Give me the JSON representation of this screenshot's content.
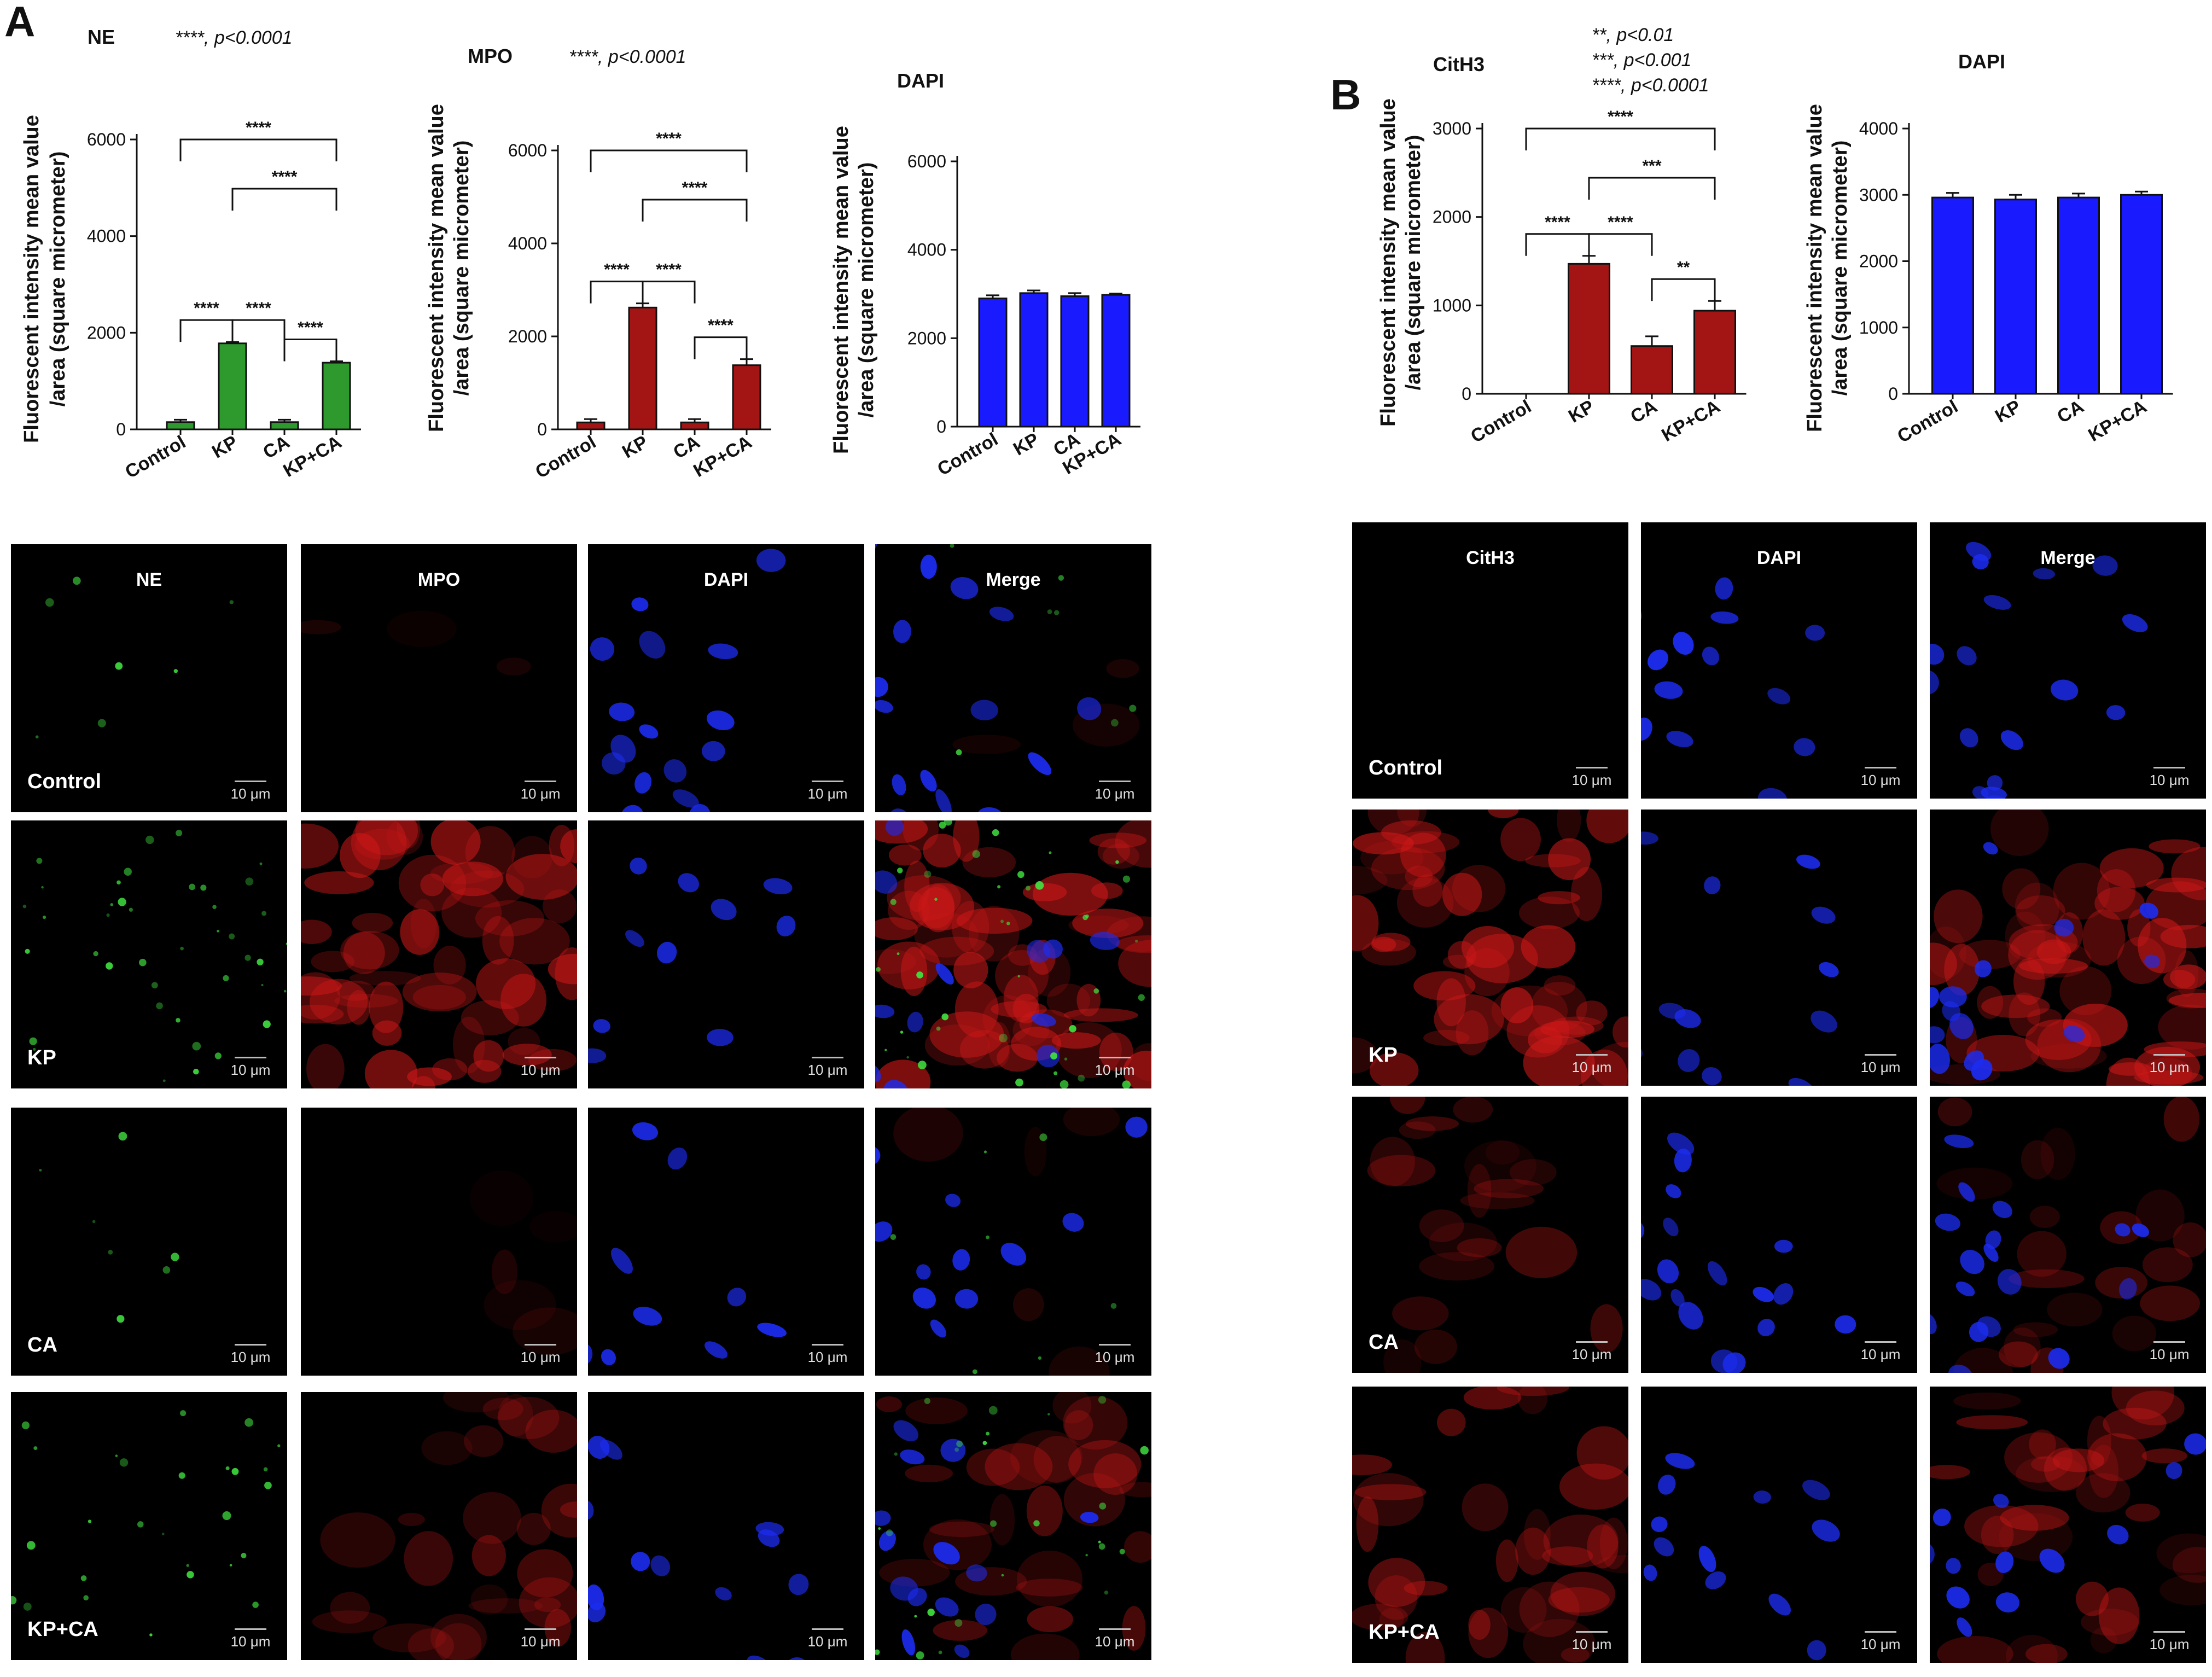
{
  "panel_letters": {
    "a": "A",
    "b": "B"
  },
  "charts": [
    {
      "id": "a-ne",
      "title": "NE",
      "stat_lines": [
        "****, p<0.0001"
      ],
      "yticks": [
        "0",
        "2000",
        "4000",
        "6000"
      ],
      "ylabel": [
        "Fluorescent intensity mean value",
        "/area (square micrometer)"
      ]
    },
    {
      "id": "a-mpo",
      "title": "MPO",
      "stat_lines": [
        "****, p<0.0001"
      ],
      "yticks": [
        "0",
        "2000",
        "4000",
        "6000"
      ],
      "ylabel": [
        "Fluorescent intensity mean value",
        "/area (square micrometer)"
      ]
    },
    {
      "id": "a-dapi",
      "title": "DAPI",
      "stat_lines": [],
      "yticks": [
        "0",
        "2000",
        "4000",
        "6000"
      ],
      "ylabel": [
        "Fluorescent intensity mean value",
        "/area (square micrometer)"
      ]
    },
    {
      "id": "b-cith3",
      "title": "CitH3",
      "stat_lines": [
        "**, p<0.01",
        "***, p<0.001",
        "****, p<0.0001"
      ],
      "yticks": [
        "0",
        "1000",
        "2000",
        "3000"
      ],
      "ylabel": [
        "Fluorescent intensity mean value",
        "/area (square micrometer)"
      ]
    },
    {
      "id": "b-dapi",
      "title": "DAPI",
      "stat_lines": [],
      "yticks": [
        "0",
        "1000",
        "2000",
        "3000",
        "4000"
      ],
      "ylabel": [
        "Fluorescent intensity mean value",
        "/area (square micrometer)"
      ]
    }
  ],
  "chart_data": [
    {
      "type": "bar",
      "title": "NE",
      "categories": [
        "Control",
        "KP",
        "CA",
        "KP+CA"
      ],
      "values": [
        150,
        1780,
        150,
        1380
      ],
      "errors": [
        50,
        30,
        50,
        30
      ],
      "ylim": [
        0,
        6000
      ],
      "ylabel": "Fluorescent intensity mean value /area (square micrometer)",
      "bar_color": "#2e9a2e",
      "significance": [
        {
          "from": 0,
          "to": 3,
          "label": "****"
        },
        {
          "from": 1,
          "to": 3,
          "label": "****"
        },
        {
          "from": 1,
          "to": 2,
          "label": "****"
        },
        {
          "from": 0,
          "to": 1,
          "label": "****"
        },
        {
          "from": 2,
          "to": 3,
          "label": "****"
        }
      ]
    },
    {
      "type": "bar",
      "title": "MPO",
      "categories": [
        "Control",
        "KP",
        "CA",
        "KP+CA"
      ],
      "values": [
        150,
        2620,
        150,
        1380
      ],
      "errors": [
        70,
        90,
        70,
        130
      ],
      "ylim": [
        0,
        6000
      ],
      "ylabel": "Fluorescent intensity mean value /area (square micrometer)",
      "bar_color": "#a31515",
      "significance": [
        {
          "from": 0,
          "to": 3,
          "label": "****"
        },
        {
          "from": 1,
          "to": 3,
          "label": "****"
        },
        {
          "from": 1,
          "to": 2,
          "label": "****"
        },
        {
          "from": 0,
          "to": 1,
          "label": "****"
        },
        {
          "from": 2,
          "to": 3,
          "label": "****"
        }
      ]
    },
    {
      "type": "bar",
      "title": "DAPI",
      "categories": [
        "Control",
        "KP",
        "CA",
        "KP+CA"
      ],
      "values": [
        2900,
        3020,
        2950,
        2980
      ],
      "errors": [
        70,
        60,
        70,
        30
      ],
      "ylim": [
        0,
        6000
      ],
      "ylabel": "Fluorescent intensity mean value /area (square micrometer)",
      "bar_color": "#1a1aff",
      "significance": []
    },
    {
      "type": "bar",
      "title": "CitH3",
      "categories": [
        "Control",
        "KP",
        "CA",
        "KP+CA"
      ],
      "values": [
        0,
        1470,
        540,
        940
      ],
      "errors": [
        0,
        90,
        110,
        110
      ],
      "ylim": [
        0,
        3000
      ],
      "ylabel": "Fluorescent intensity mean value /area (square micrometer)",
      "bar_color": "#a31515",
      "significance": [
        {
          "from": 0,
          "to": 3,
          "label": "****"
        },
        {
          "from": 1,
          "to": 3,
          "label": "***"
        },
        {
          "from": 0,
          "to": 1,
          "label": "****"
        },
        {
          "from": 1,
          "to": 2,
          "label": "****"
        },
        {
          "from": 2,
          "to": 3,
          "label": "**"
        }
      ]
    },
    {
      "type": "bar",
      "title": "DAPI",
      "categories": [
        "Control",
        "KP",
        "CA",
        "KP+CA"
      ],
      "values": [
        2960,
        2930,
        2960,
        3000
      ],
      "errors": [
        70,
        70,
        60,
        50
      ],
      "ylim": [
        0,
        4000
      ],
      "ylabel": "Fluorescent intensity mean value /area (square micrometer)",
      "bar_color": "#1a1aff",
      "significance": []
    }
  ],
  "micrographs_a": {
    "column_titles": [
      "NE",
      "MPO",
      "DAPI",
      "Merge"
    ],
    "row_labels": [
      "Control",
      "KP",
      "CA",
      "KP+CA"
    ],
    "scale_label": "10 μm"
  },
  "micrographs_b": {
    "column_titles": [
      "CitH3",
      "DAPI",
      "Merge"
    ],
    "row_labels": [
      "Control",
      "KP",
      "CA",
      "KP+CA"
    ],
    "scale_label": "10 μm"
  }
}
